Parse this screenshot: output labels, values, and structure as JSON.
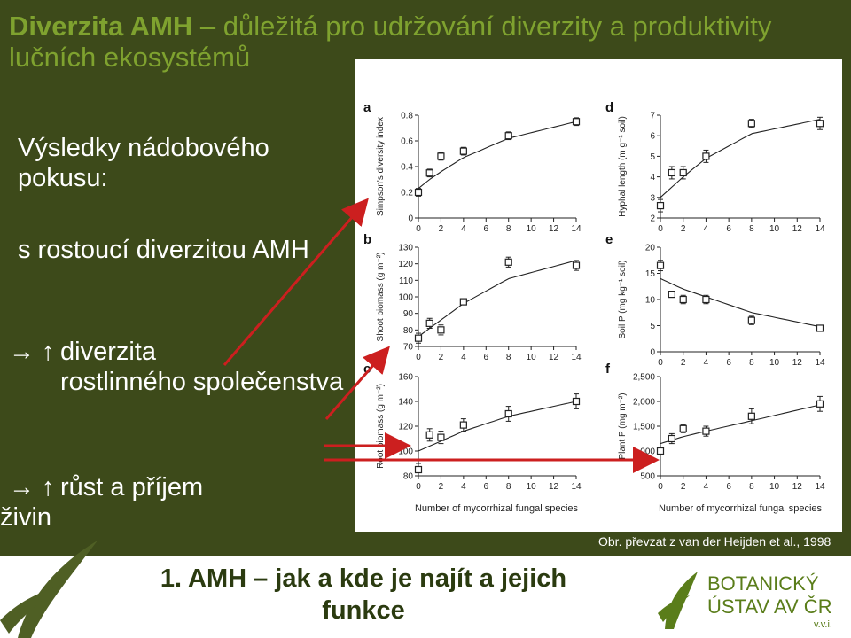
{
  "slide": {
    "title_part1": "Diverzita AMH",
    "title_part2": " – důležitá pro udržování diverzity a produktivity lučních ekosystémů",
    "bullet1": "Výsledky nádobového pokusu:",
    "bullet2": "s rostoucí diverzitou AMH",
    "sub1_arrow": "→ ↑",
    "sub1_line1": "diverzita",
    "sub1_rest": "rostlinného společenstva",
    "sub2_arrow": "→ ↑",
    "sub2_line1": "růst a příjem",
    "sub2_rest": "živin",
    "caption": "Obr. převzat z van der Heijden et al., 1998",
    "bottom_title": "1. AMH – jak a kde je najít a jejich funkce",
    "logo_line1": "BOTANICKÝ",
    "logo_line2": "ÚSTAV AV ČR",
    "logo_line3": "v.v.i.",
    "colors": {
      "dark_bg": "#3d4a1a",
      "title": "#7fa22f",
      "arrow": "#cc1f1f",
      "logo": "#5a7d1a"
    }
  },
  "chart_data": [
    {
      "panel": "a",
      "type": "scatter",
      "ylabel": "Simpson's diversity index",
      "x": [
        0,
        1,
        2,
        4,
        8,
        14
      ],
      "y": [
        0.2,
        0.35,
        0.48,
        0.52,
        0.64,
        0.75
      ],
      "err": [
        0.03,
        0.03,
        0.03,
        0.03,
        0.03,
        0.03
      ],
      "curve": [
        0.23,
        0.3,
        0.36,
        0.47,
        0.62,
        0.75
      ],
      "ylim": [
        0,
        0.8
      ],
      "yticks": [
        "0",
        "0.2",
        "0.4",
        "0.6",
        "0.8"
      ],
      "xticks": [
        "0",
        "2",
        "4",
        "6",
        "8",
        "10",
        "12",
        "14"
      ]
    },
    {
      "panel": "b",
      "type": "scatter",
      "ylabel": "Shoot biomass (g m⁻²)",
      "x": [
        0,
        1,
        2,
        4,
        8,
        14
      ],
      "y": [
        75,
        84,
        80,
        97,
        121,
        119
      ],
      "err": [
        3,
        3,
        3,
        1,
        3,
        3
      ],
      "curve": [
        76,
        81,
        86,
        96,
        111,
        122
      ],
      "ylim": [
        70,
        130
      ],
      "yticks": [
        "70",
        "80",
        "90",
        "100",
        "110",
        "120",
        "130"
      ],
      "xticks": [
        "0",
        "2",
        "4",
        "6",
        "8",
        "10",
        "12",
        "14"
      ]
    },
    {
      "panel": "c",
      "type": "scatter",
      "ylabel": "Root biomass (g m⁻²)",
      "x": [
        0,
        1,
        2,
        4,
        8,
        14
      ],
      "y": [
        85,
        113,
        111,
        121,
        130,
        140
      ],
      "err": [
        5,
        5,
        5,
        5,
        6,
        6
      ],
      "curve": [
        100,
        104,
        108,
        116,
        128,
        140
      ],
      "ylim": [
        80,
        160
      ],
      "yticks": [
        "80",
        "100",
        "120",
        "140",
        "160"
      ],
      "xticks": [
        "0",
        "2",
        "4",
        "6",
        "8",
        "10",
        "12",
        "14"
      ]
    },
    {
      "panel": "d",
      "type": "scatter",
      "ylabel": "Hyphal length (m g⁻¹ soil)",
      "x": [
        0,
        1,
        2,
        4,
        8,
        14
      ],
      "y": [
        2.6,
        4.2,
        4.2,
        5.0,
        6.6,
        6.6
      ],
      "err": [
        0.3,
        0.3,
        0.3,
        0.3,
        0.2,
        0.3
      ],
      "curve": [
        3.0,
        3.5,
        4.0,
        4.9,
        6.1,
        6.8
      ],
      "ylim": [
        2,
        7
      ],
      "yticks": [
        "2",
        "3",
        "4",
        "5",
        "6",
        "7"
      ],
      "xticks": [
        "0",
        "2",
        "4",
        "6",
        "8",
        "10",
        "12",
        "14"
      ]
    },
    {
      "panel": "e",
      "type": "scatter",
      "ylabel": "Soil P (mg kg⁻¹ soil)",
      "x": [
        0,
        1,
        2,
        4,
        8,
        14
      ],
      "y": [
        16.5,
        11,
        10,
        10,
        6,
        4.5
      ],
      "err": [
        1,
        0.3,
        0.8,
        0.8,
        0.8,
        0.3
      ],
      "curve": [
        14.0,
        13.0,
        12.0,
        10.5,
        7.5,
        4.8
      ],
      "ylim": [
        0,
        20
      ],
      "yticks": [
        "0",
        "5",
        "10",
        "15",
        "20"
      ],
      "xticks": [
        "0",
        "2",
        "4",
        "6",
        "8",
        "10",
        "12",
        "14"
      ]
    },
    {
      "panel": "f",
      "type": "scatter",
      "ylabel": "Plant P (mg m⁻²)",
      "x": [
        0,
        1,
        2,
        4,
        8,
        14
      ],
      "y": [
        1000,
        1250,
        1450,
        1400,
        1700,
        1950
      ],
      "err": [
        60,
        100,
        80,
        100,
        150,
        150
      ],
      "curve": [
        1150,
        1220,
        1290,
        1400,
        1610,
        1930
      ],
      "ylim": [
        500,
        2500
      ],
      "yticks": [
        "500",
        "1,000",
        "1,500",
        "2,000",
        "2,500"
      ],
      "xticks": [
        "0",
        "2",
        "4",
        "6",
        "8",
        "10",
        "12",
        "14"
      ]
    }
  ],
  "figure": {
    "xlabel_left": "Number of mycorrhizal fungal species",
    "xlabel_right": "Number of mycorrhizal fungal species"
  }
}
